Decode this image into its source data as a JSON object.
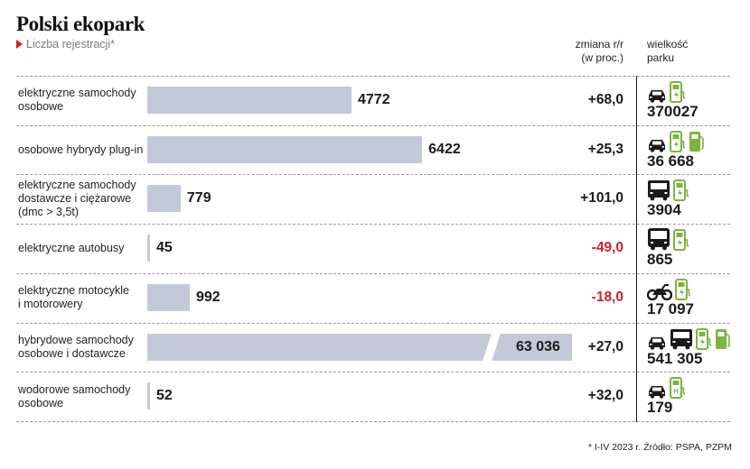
{
  "title": "Polski ekopark",
  "subtitle": "Liczba rejestracji*",
  "headers": {
    "change": "zmiana r/r\n(w proc.)",
    "fleet": "wielkość\nparku"
  },
  "footnote": "* I-IV 2023 r. Źródło: PSPA, PZPM",
  "colors": {
    "bar": "#c4c9d9",
    "negative": "#d0202a",
    "positive": "#1a1a1a",
    "icon_vehicle": "#1a1a1a",
    "icon_charger": "#7cb342",
    "accent": "#d0202a"
  },
  "chart_data": {
    "type": "bar",
    "orientation": "horizontal",
    "categories": [
      "elektryczne samochody osobowe",
      "osobowe hybrydy plug-in",
      "elektryczne samochody dostawcze i ciężarowe (dmc > 3,5t)",
      "elektryczne autobusy",
      "elektryczne motocykle i motorowery",
      "hybrydowe samochody osobowe i dostawcze",
      "wodorowe samochody osobowe"
    ],
    "values": [
      4772,
      6422,
      779,
      45,
      992,
      63036,
      52
    ],
    "value_labels": [
      "4772",
      "6422",
      "779",
      "45",
      "992",
      "63 036",
      "52"
    ],
    "axis_break": true,
    "title": "Polski ekopark",
    "subtitle": "Liczba rejestracji*"
  },
  "rows": [
    {
      "label": "elektryczne samochody\nosobowe",
      "value_label": "4772",
      "change": "+68,0",
      "change_negative": false,
      "fleet": "370027",
      "icons": [
        "car-icon",
        "ev-charger-icon"
      ]
    },
    {
      "label": "osobowe hybrydy plug-in",
      "value_label": "6422",
      "change": "+25,3",
      "change_negative": false,
      "fleet": "36 668",
      "icons": [
        "car-icon",
        "ev-charger-icon",
        "fuel-pump-icon"
      ]
    },
    {
      "label": "elektryczne samochody\ndostawcze i ciężarowe\n(dmc > 3,5t)",
      "value_label": "779",
      "change": "+101,0",
      "change_negative": false,
      "fleet": "3904",
      "icons": [
        "truck-icon",
        "ev-charger-icon"
      ]
    },
    {
      "label": "elektryczne autobusy",
      "value_label": "45",
      "change": "-49,0",
      "change_negative": true,
      "fleet": "865",
      "icons": [
        "bus-icon",
        "ev-charger-icon"
      ]
    },
    {
      "label": "elektryczne motocykle\ni motorowery",
      "value_label": "992",
      "change": "-18,0",
      "change_negative": true,
      "fleet": "17 097",
      "icons": [
        "motorcycle-icon",
        "ev-charger-icon"
      ]
    },
    {
      "label": "hybrydowe samochody\nosobowe i dostawcze",
      "value_label": "63 036",
      "change": "+27,0",
      "change_negative": false,
      "fleet": "541 305",
      "icons": [
        "car-icon",
        "truck-icon",
        "ev-charger-icon",
        "fuel-pump-icon"
      ]
    },
    {
      "label": "wodorowe samochody\nosobowe",
      "value_label": "52",
      "change": "+32,0",
      "change_negative": false,
      "fleet": "179",
      "icons": [
        "car-icon",
        "hydrogen-charger-icon"
      ]
    }
  ]
}
